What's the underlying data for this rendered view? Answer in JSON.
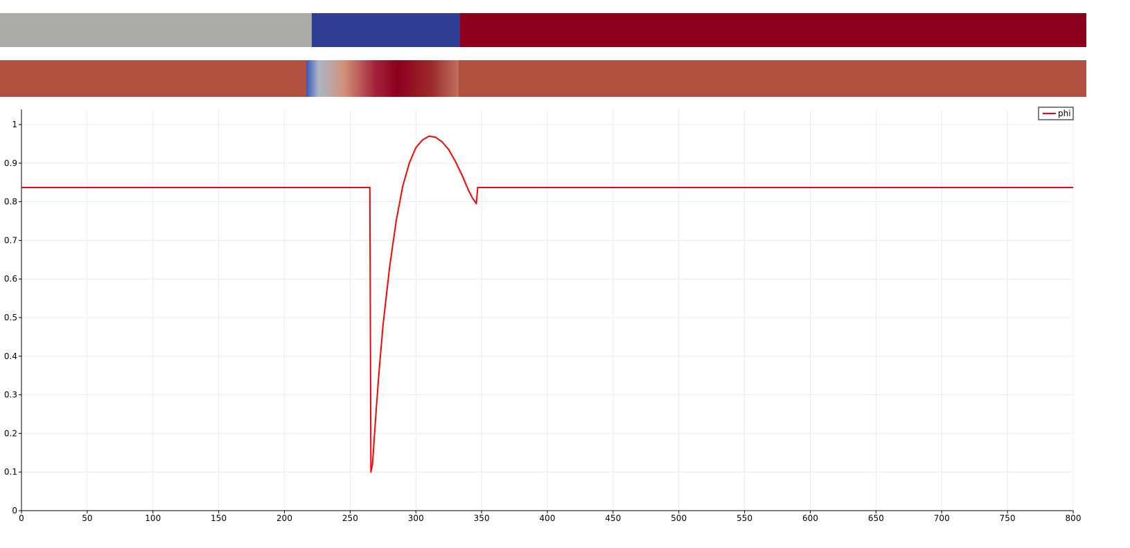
{
  "render_views": {
    "top_band": [
      {
        "from": 0,
        "to": 229.4,
        "color": "#abaaa5"
      },
      {
        "from": 229.4,
        "to": 338.8,
        "color": "#2f3e93"
      },
      {
        "from": 338.8,
        "to": 800,
        "color": "#8d001e"
      }
    ],
    "middle_band": {
      "base_color": "#b0503e",
      "gradient_from": 225.5,
      "gradient_to": 337.6,
      "gradient_stops": [
        {
          "offset": 0.0,
          "color": "#3a56b8"
        },
        {
          "offset": 0.08,
          "color": "#aab6c8"
        },
        {
          "offset": 0.25,
          "color": "#d29078"
        },
        {
          "offset": 0.45,
          "color": "#a4243a"
        },
        {
          "offset": 0.6,
          "color": "#8d001e"
        },
        {
          "offset": 0.82,
          "color": "#9a2a2a"
        },
        {
          "offset": 1.0,
          "color": "#c07060"
        }
      ]
    }
  },
  "chart_data": {
    "type": "line",
    "xlim": [
      0,
      800
    ],
    "ylim": [
      0,
      1
    ],
    "x_ticks": [
      0,
      50,
      100,
      150,
      200,
      250,
      300,
      350,
      400,
      450,
      500,
      550,
      600,
      650,
      700,
      750,
      800
    ],
    "y_ticks": [
      0,
      0.1,
      0.2,
      0.3,
      0.4,
      0.5,
      0.6,
      0.7,
      0.8,
      0.9,
      1
    ],
    "grid": true,
    "legend_position": "top-right",
    "series": [
      {
        "name": "phi",
        "color": "#ff0000",
        "x": [
          0,
          265,
          265.8,
          267.0,
          268.0,
          270.0,
          272.0,
          275.0,
          280.0,
          285.0,
          290.0,
          295.0,
          300.0,
          305.0,
          310.0,
          315.0,
          320.0,
          325.0,
          330.0,
          335.0,
          340.0,
          343.0,
          345.0,
          346.0,
          347.0,
          348.0,
          800
        ],
        "y": [
          0.837,
          0.837,
          0.1,
          0.12,
          0.17,
          0.27,
          0.36,
          0.48,
          0.63,
          0.75,
          0.84,
          0.9,
          0.94,
          0.96,
          0.97,
          0.967,
          0.955,
          0.935,
          0.905,
          0.87,
          0.83,
          0.81,
          0.8,
          0.795,
          0.837,
          0.837,
          0.837
        ]
      }
    ]
  }
}
